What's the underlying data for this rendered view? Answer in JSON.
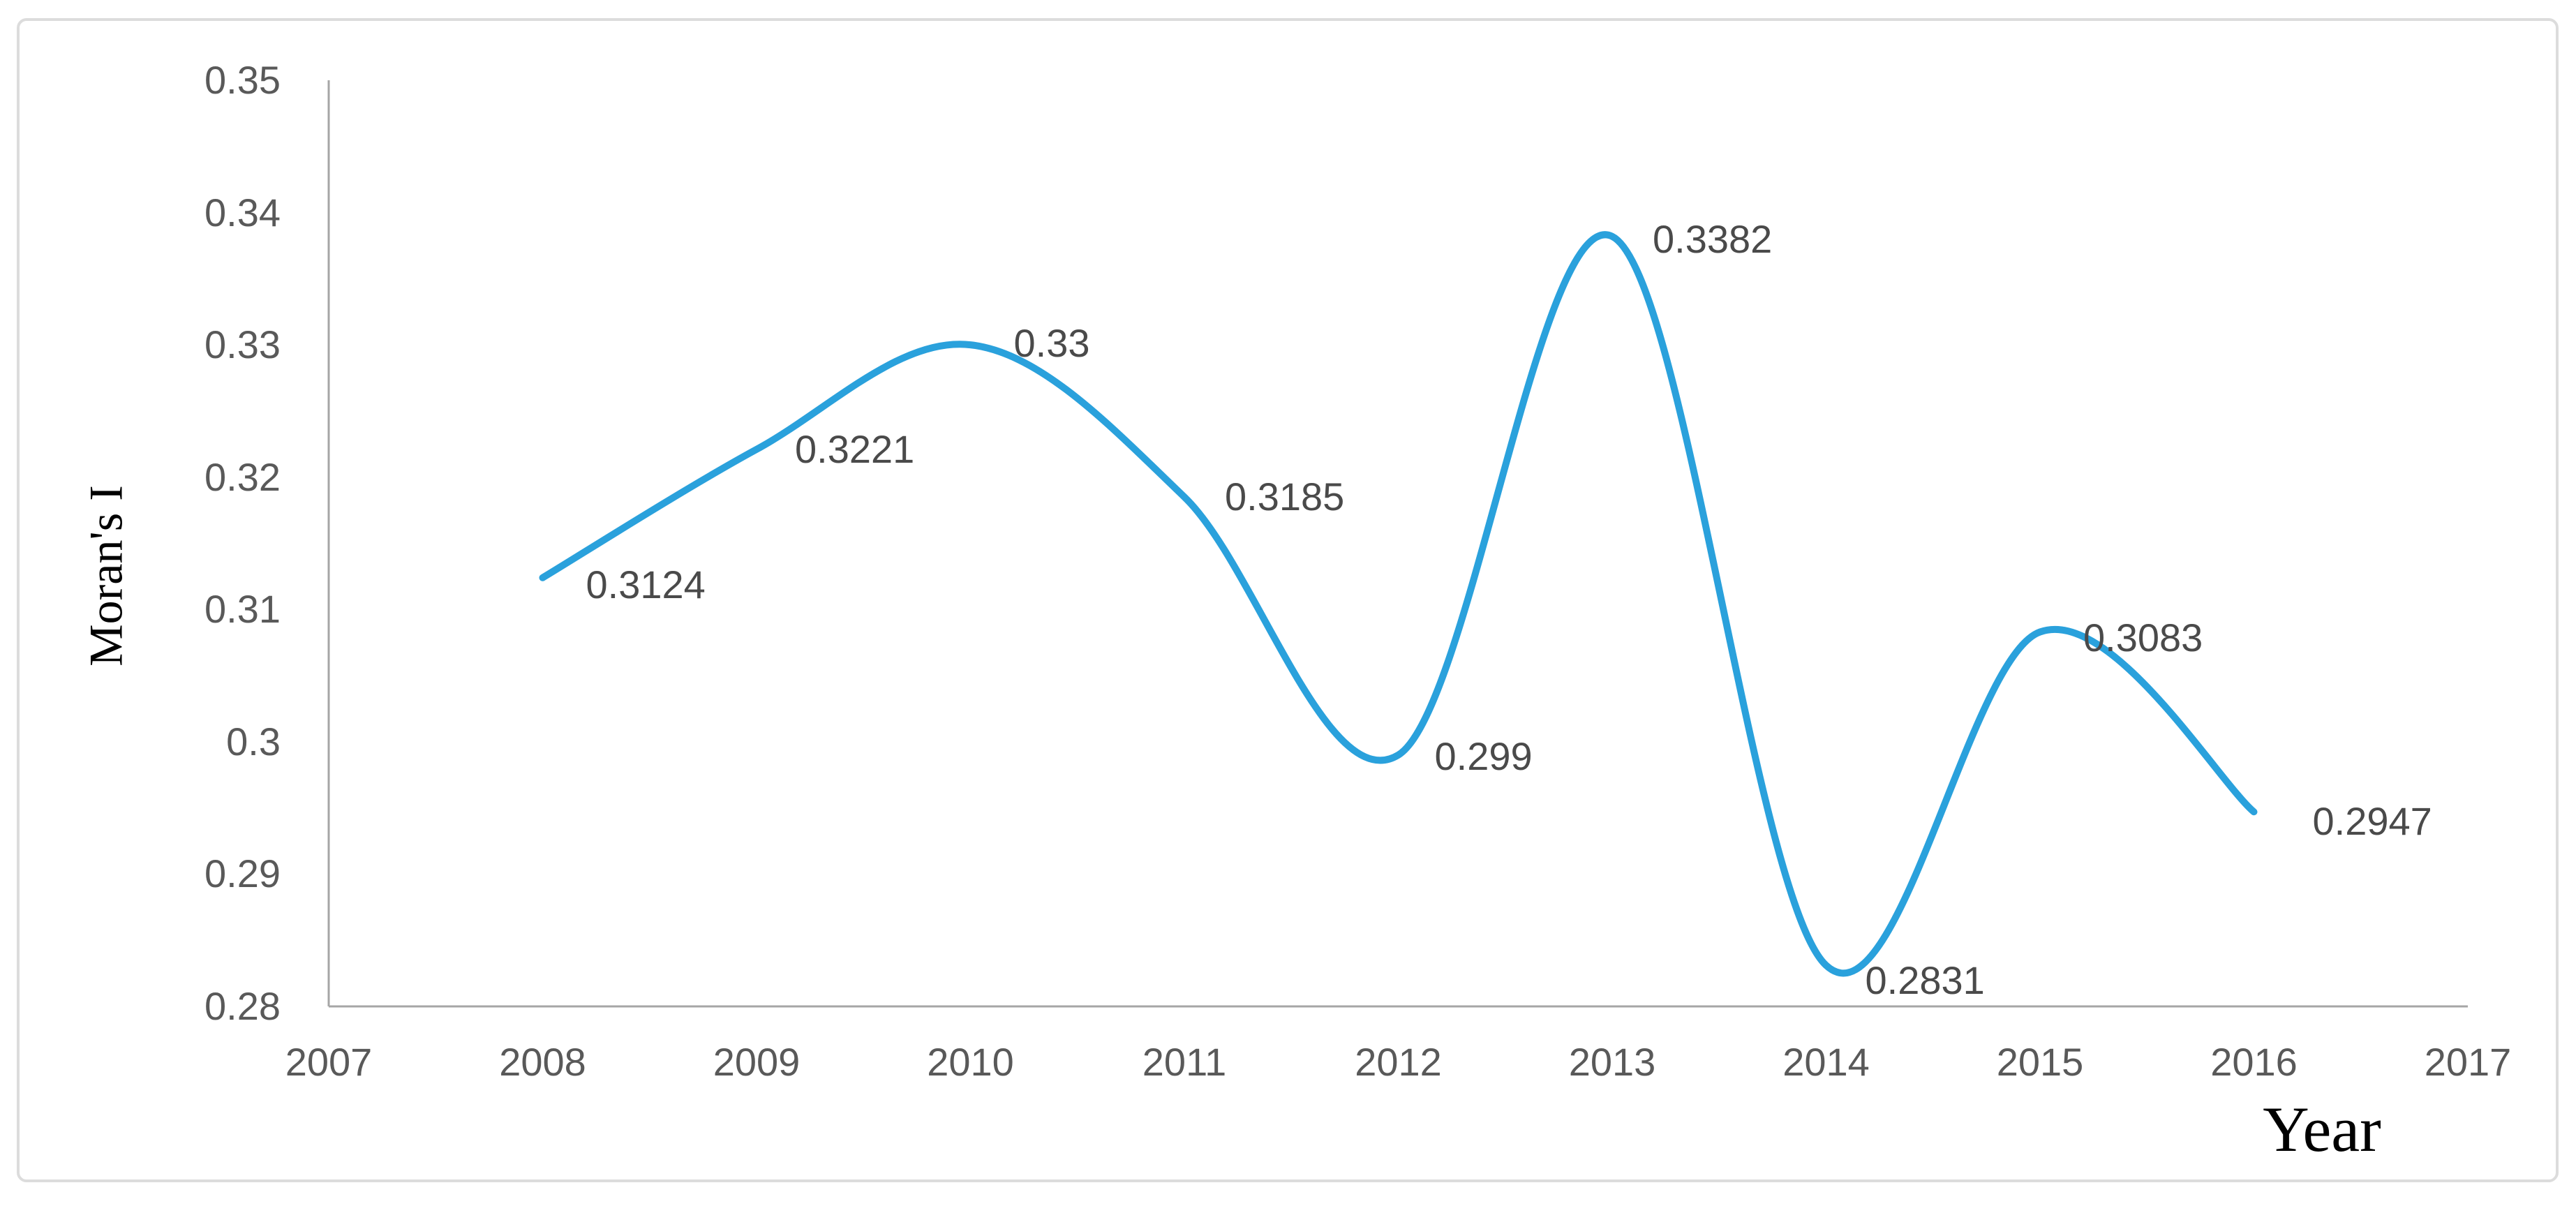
{
  "chart_data": {
    "type": "line",
    "title": "",
    "xlabel": "Year",
    "ylabel": "Moran's I",
    "x": [
      2008,
      2009,
      2010,
      2011,
      2012,
      2013,
      2014,
      2015,
      2016
    ],
    "values": [
      0.3124,
      0.3221,
      0.33,
      0.3185,
      0.299,
      0.3382,
      0.2831,
      0.3083,
      0.2947
    ],
    "point_labels": [
      "0.3124",
      "0.3221",
      "0.33",
      "0.3185",
      "0.299",
      "0.3382",
      "0.2831",
      "0.3083",
      "0.2947"
    ],
    "x_ticks": [
      "2007",
      "2008",
      "2009",
      "2010",
      "2011",
      "2012",
      "2013",
      "2014",
      "2015",
      "2016",
      "2017"
    ],
    "y_ticks": [
      "0.35",
      "0.34",
      "0.33",
      "0.32",
      "0.31",
      "0.3",
      "0.29",
      "0.28"
    ],
    "xlim": [
      2007,
      2017
    ],
    "ylim": [
      0.28,
      0.35
    ],
    "grid": false,
    "legend": "none",
    "smooth_line": true,
    "colors": {
      "line": "#2AA1DC",
      "axis": "#A6A6A6",
      "tick_text": "#595959",
      "data_label_text": "#4A4A4A",
      "axis_title_text": "#000000",
      "frame_border": "#DCDCDC"
    }
  }
}
